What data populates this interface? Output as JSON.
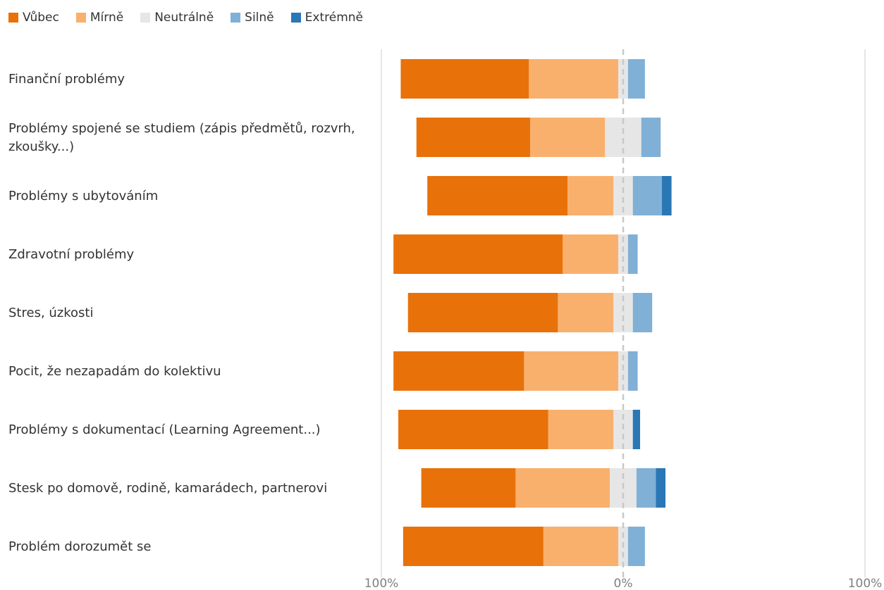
{
  "legend": [
    {
      "label": "Vůbec",
      "color": "#e8710a"
    },
    {
      "label": "Mírně",
      "color": "#f9b06d"
    },
    {
      "label": "Neutrálně",
      "color": "#e6e6e6"
    },
    {
      "label": "Silně",
      "color": "#80b0d6"
    },
    {
      "label": "Extrémně",
      "color": "#2a77b5"
    }
  ],
  "chart_data": {
    "type": "bar",
    "orientation": "horizontal",
    "stacking": "diverging",
    "categories": [
      [
        "Finanční problémy"
      ],
      [
        "Problémy spojené se studiem (zápis předmětů, rozvrh,",
        "zkoušky...)"
      ],
      [
        "Problémy s ubytováním"
      ],
      [
        "Zdravotní problémy"
      ],
      [
        "Stres, úzkosti"
      ],
      [
        "Pocit, že nezapadám do kolektivu"
      ],
      [
        "Problémy s dokumentací (Learning Agreement...)"
      ],
      [
        "Stesk po domově, rodině, kamarádech, partnerovi"
      ],
      [
        "Problém dorozumět se"
      ]
    ],
    "series": [
      {
        "name": "Vůbec",
        "color": "#e8710a",
        "values": [
          53,
          47,
          58,
          70,
          62,
          54,
          62,
          39,
          58
        ]
      },
      {
        "name": "Mírně",
        "color": "#f9b06d",
        "values": [
          37,
          31,
          19,
          23,
          23,
          39,
          27,
          39,
          31
        ]
      },
      {
        "name": "Neutrálně",
        "color": "#e6e6e6",
        "values": [
          4,
          15,
          8,
          4,
          8,
          4,
          8,
          11,
          4
        ]
      },
      {
        "name": "Silně",
        "color": "#80b0d6",
        "values": [
          7,
          8,
          12,
          4,
          8,
          4,
          0,
          8,
          7
        ]
      },
      {
        "name": "Extrémně",
        "color": "#2a77b5",
        "values": [
          0,
          0,
          4,
          0,
          0,
          0,
          3,
          4,
          0
        ]
      }
    ],
    "xlim": [
      -100,
      100
    ],
    "x_ticks": [
      "100%",
      "0%",
      "100%"
    ],
    "zero_line": "dashed",
    "grid": false,
    "legend_position": "top-left"
  }
}
